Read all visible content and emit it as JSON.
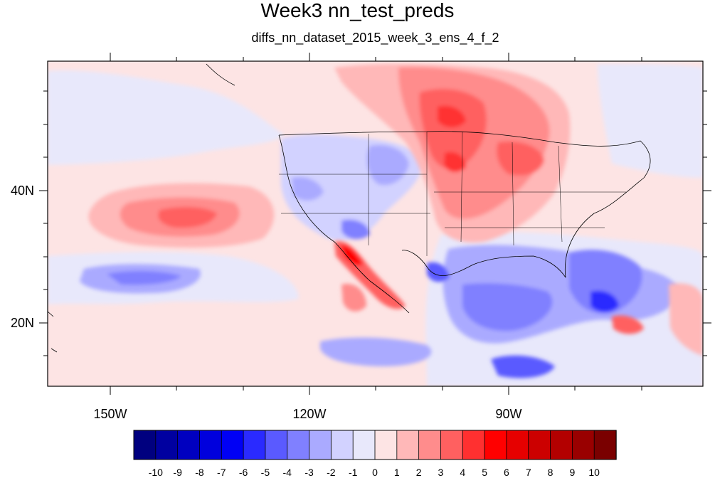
{
  "title": "Week3 nn_test_preds",
  "subtitle": "diffs_nn_dataset_2015_week_3_ens_4_f_2",
  "map": {
    "type": "filled-contour",
    "projection": "cylindrical-equidistant",
    "lon_range": [
      -160,
      -61
    ],
    "lat_range": [
      11,
      60
    ],
    "coastlines": true,
    "state_boundaries": true,
    "x_tick_labels": [
      {
        "lon": -150,
        "label": "150W"
      },
      {
        "lon": -120,
        "label": "120W"
      },
      {
        "lon": -90,
        "label": "90W"
      }
    ],
    "y_tick_labels": [
      {
        "lat": 40,
        "label": "40N"
      },
      {
        "lat": 20,
        "label": "20N"
      }
    ],
    "features": [
      {
        "name": "central-us-canada-warm-anomaly",
        "sign": "positive",
        "peak": 6
      },
      {
        "name": "central-pacific-warm-anomaly",
        "sign": "positive",
        "peak": 5
      },
      {
        "name": "baja-gulf-of-california-warm-anomaly",
        "sign": "positive",
        "peak": 7
      },
      {
        "name": "gulf-of-mexico-cool-anomaly",
        "sign": "negative",
        "peak": -6
      },
      {
        "name": "florida-atlantic-cool-anomaly",
        "sign": "negative",
        "peak": -6
      },
      {
        "name": "rocky-mountains-cool-anomaly",
        "sign": "negative",
        "peak": -4
      },
      {
        "name": "subtropical-pacific-cool-anomaly",
        "sign": "negative",
        "peak": -3
      }
    ]
  },
  "colorbar": {
    "labels": [
      "-10",
      "-9",
      "-8",
      "-7",
      "-6",
      "-5",
      "-4",
      "-3",
      "-2",
      "-1",
      "0",
      "1",
      "2",
      "3",
      "4",
      "5",
      "6",
      "7",
      "8",
      "9",
      "10"
    ],
    "colors": [
      "#00007f",
      "#0000a0",
      "#0000c0",
      "#0000dd",
      "#0000f5",
      "#2a2aff",
      "#5a5aff",
      "#8080ff",
      "#aaaaff",
      "#d2d2ff",
      "#e8e8fb",
      "#fde4e4",
      "#ffb8b8",
      "#ff8c8c",
      "#ff6060",
      "#ff3030",
      "#ff0000",
      "#e60000",
      "#cc0000",
      "#b30000",
      "#990000",
      "#7a0000"
    ]
  }
}
